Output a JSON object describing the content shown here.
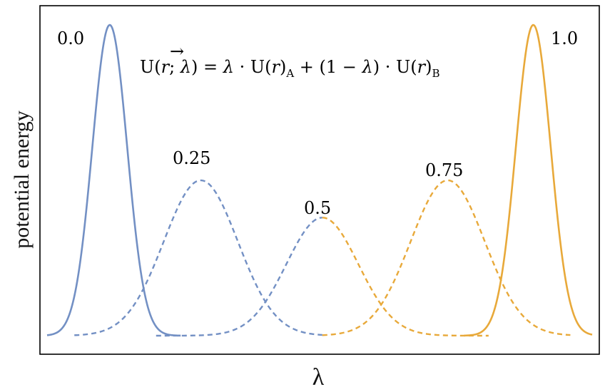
{
  "chart_data": {
    "type": "line",
    "title": "",
    "xlabel": "λ",
    "ylabel": "potential energy",
    "equation": {
      "lhs": "U(",
      "r_vec": "r",
      "arrow": "→",
      "sep": "; ",
      "lam": "λ",
      "rhs_part1": ") = ",
      "lam2": "λ",
      "dot1": " · U(",
      "r1": "r",
      "close1": ")",
      "sub_a": "A",
      "plus": " + (1 − ",
      "lam3": "λ",
      "dot2": ") · U(",
      "r2": "r",
      "close2": ")",
      "sub_b": "B"
    },
    "grid": false,
    "legend": "none",
    "colors": {
      "blue": "#7390c4",
      "orange": "#e8a93a",
      "frame": "#000000"
    },
    "x_range": [
      0,
      1
    ],
    "y_range": [
      0,
      1
    ],
    "series": [
      {
        "label": "0.0",
        "center": 0.115,
        "width": 0.032,
        "peak": 1.0,
        "from": 0.0,
        "to": 0.245,
        "color": "blue",
        "dashed": false
      },
      {
        "label": "0.25",
        "center": 0.282,
        "width": 0.068,
        "peak": 0.5,
        "from": 0.05,
        "to": 0.505,
        "color": "blue",
        "dashed": true
      },
      {
        "label": "0.5",
        "center": 0.505,
        "width": 0.066,
        "peak": 0.38,
        "from": 0.2,
        "to": 0.505,
        "color": "blue",
        "dashed": true
      },
      {
        "label": "0.5",
        "center": 0.505,
        "width": 0.066,
        "peak": 0.38,
        "from": 0.505,
        "to": 0.81,
        "color": "orange",
        "dashed": true
      },
      {
        "label": "0.75",
        "center": 0.735,
        "width": 0.068,
        "peak": 0.5,
        "from": 0.505,
        "to": 0.96,
        "color": "orange",
        "dashed": true
      },
      {
        "label": "1.0",
        "center": 0.892,
        "width": 0.032,
        "peak": 1.0,
        "from": 0.765,
        "to": 1.0,
        "color": "orange",
        "dashed": false
      }
    ],
    "peak_labels": [
      "0.0",
      "0.25",
      "0.5",
      "0.75",
      "1.0"
    ]
  }
}
